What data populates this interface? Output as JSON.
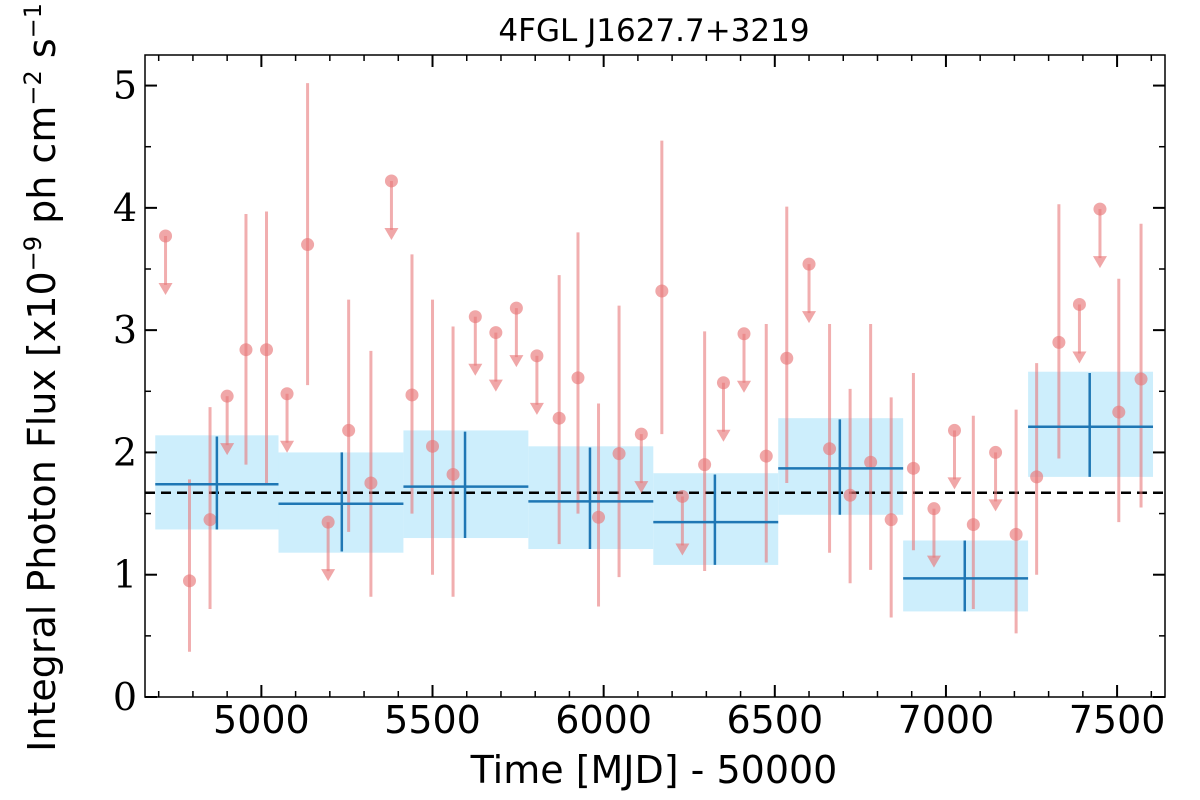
{
  "chart_data": {
    "type": "scatter",
    "title": "4FGL J1627.7+3219",
    "xlabel": "Time [MJD] - 50000",
    "ylabel": "Integral Photon Flux [x10^-9 ph cm^-2 s^-1]",
    "ylabel_parts": {
      "prefix": "Integral Photon Flux [x10",
      "exp1": "−9",
      "mid": " ph cm",
      "exp2": "−2",
      "mid2": " s",
      "exp3": "−1",
      "suffix": "]"
    },
    "xlim": [
      4660,
      7640
    ],
    "ylim": [
      0,
      5.25
    ],
    "xticks": [
      5000,
      5500,
      6000,
      6500,
      7000,
      7500
    ],
    "yticks": [
      0,
      1,
      2,
      3,
      4,
      5
    ],
    "mean_flux": 1.67,
    "colors": {
      "fine": "#e8787a",
      "coarse": "#1f77b4",
      "band": "#cdeefc",
      "mean": "#000000"
    },
    "series": [
      {
        "kind": "detections",
        "points": [
          {
            "x": 4790,
            "y": 0.95,
            "lo": 0.37,
            "hi": 1.78
          },
          {
            "x": 4850,
            "y": 1.45,
            "lo": 0.72,
            "hi": 2.37
          },
          {
            "x": 4955,
            "y": 2.84,
            "lo": 1.9,
            "hi": 3.95
          },
          {
            "x": 5015,
            "y": 2.84,
            "lo": 1.75,
            "hi": 3.97
          },
          {
            "x": 5135,
            "y": 3.7,
            "lo": 2.55,
            "hi": 5.02
          },
          {
            "x": 5255,
            "y": 2.18,
            "lo": 1.35,
            "hi": 3.25
          },
          {
            "x": 5320,
            "y": 1.75,
            "lo": 0.82,
            "hi": 2.83
          },
          {
            "x": 5440,
            "y": 2.47,
            "lo": 1.5,
            "hi": 3.62
          },
          {
            "x": 5500,
            "y": 2.05,
            "lo": 1.0,
            "hi": 3.25
          },
          {
            "x": 5560,
            "y": 1.82,
            "lo": 0.82,
            "hi": 3.03
          },
          {
            "x": 5870,
            "y": 2.28,
            "lo": 1.25,
            "hi": 3.45
          },
          {
            "x": 5925,
            "y": 2.61,
            "lo": 1.5,
            "hi": 3.8
          },
          {
            "x": 5985,
            "y": 1.47,
            "lo": 0.74,
            "hi": 2.4
          },
          {
            "x": 6045,
            "y": 1.99,
            "lo": 0.98,
            "hi": 3.2
          },
          {
            "x": 6170,
            "y": 3.32,
            "lo": 2.15,
            "hi": 4.55
          },
          {
            "x": 6295,
            "y": 1.9,
            "lo": 1.03,
            "hi": 2.99
          },
          {
            "x": 6475,
            "y": 1.97,
            "lo": 1.1,
            "hi": 3.05
          },
          {
            "x": 6535,
            "y": 2.77,
            "lo": 1.75,
            "hi": 4.01
          },
          {
            "x": 6660,
            "y": 2.03,
            "lo": 1.18,
            "hi": 3.05
          },
          {
            "x": 6720,
            "y": 1.65,
            "lo": 0.93,
            "hi": 2.52
          },
          {
            "x": 6780,
            "y": 1.92,
            "lo": 1.04,
            "hi": 3.05
          },
          {
            "x": 6840,
            "y": 1.45,
            "lo": 0.65,
            "hi": 2.45
          },
          {
            "x": 6905,
            "y": 1.87,
            "lo": 1.2,
            "hi": 2.65
          },
          {
            "x": 7080,
            "y": 1.41,
            "lo": 0.72,
            "hi": 2.3
          },
          {
            "x": 7205,
            "y": 1.33,
            "lo": 0.52,
            "hi": 2.35
          },
          {
            "x": 7265,
            "y": 1.8,
            "lo": 1.0,
            "hi": 2.73
          },
          {
            "x": 7330,
            "y": 2.9,
            "lo": 1.95,
            "hi": 4.03
          },
          {
            "x": 7505,
            "y": 2.33,
            "lo": 1.43,
            "hi": 3.42
          },
          {
            "x": 7570,
            "y": 2.6,
            "lo": 1.55,
            "hi": 3.87
          }
        ]
      },
      {
        "kind": "upper_limits",
        "points": [
          {
            "x": 4720,
            "y": 3.77
          },
          {
            "x": 4900,
            "y": 2.46
          },
          {
            "x": 5075,
            "y": 2.48
          },
          {
            "x": 5195,
            "y": 1.43
          },
          {
            "x": 5380,
            "y": 4.22
          },
          {
            "x": 5625,
            "y": 3.11
          },
          {
            "x": 5685,
            "y": 2.98
          },
          {
            "x": 5745,
            "y": 3.18
          },
          {
            "x": 5805,
            "y": 2.79
          },
          {
            "x": 6110,
            "y": 2.15
          },
          {
            "x": 6230,
            "y": 1.64
          },
          {
            "x": 6350,
            "y": 2.57
          },
          {
            "x": 6410,
            "y": 2.97
          },
          {
            "x": 6600,
            "y": 3.54
          },
          {
            "x": 6965,
            "y": 1.54
          },
          {
            "x": 7025,
            "y": 2.18
          },
          {
            "x": 7145,
            "y": 2.0
          },
          {
            "x": 7390,
            "y": 3.21
          },
          {
            "x": 7450,
            "y": 3.99
          }
        ]
      },
      {
        "kind": "coarse_bins",
        "points": [
          {
            "x0": 4690,
            "x1": 5050,
            "xc": 4870,
            "y": 1.74,
            "lo": 1.37,
            "hi": 2.14,
            "elo": 1.37,
            "ehi": 2.13
          },
          {
            "x0": 5050,
            "x1": 5415,
            "xc": 5235,
            "y": 1.58,
            "lo": 1.18,
            "hi": 2.0,
            "elo": 1.19,
            "ehi": 2.0
          },
          {
            "x0": 5415,
            "x1": 5780,
            "xc": 5595,
            "y": 1.72,
            "lo": 1.3,
            "hi": 2.18,
            "elo": 1.3,
            "ehi": 2.17
          },
          {
            "x0": 5780,
            "x1": 6145,
            "xc": 5960,
            "y": 1.6,
            "lo": 1.21,
            "hi": 2.05,
            "elo": 1.21,
            "ehi": 2.04
          },
          {
            "x0": 6145,
            "x1": 6510,
            "xc": 6325,
            "y": 1.43,
            "lo": 1.08,
            "hi": 1.83,
            "elo": 1.08,
            "ehi": 1.82
          },
          {
            "x0": 6510,
            "x1": 6875,
            "xc": 6690,
            "y": 1.87,
            "lo": 1.49,
            "hi": 2.28,
            "elo": 1.49,
            "ehi": 2.27
          },
          {
            "x0": 6875,
            "x1": 7240,
            "xc": 7055,
            "y": 0.97,
            "lo": 0.7,
            "hi": 1.28,
            "elo": 0.7,
            "ehi": 1.28
          },
          {
            "x0": 7240,
            "x1": 7605,
            "xc": 7420,
            "y": 2.21,
            "lo": 1.8,
            "hi": 2.66,
            "elo": 1.8,
            "ehi": 2.65
          }
        ]
      }
    ]
  }
}
